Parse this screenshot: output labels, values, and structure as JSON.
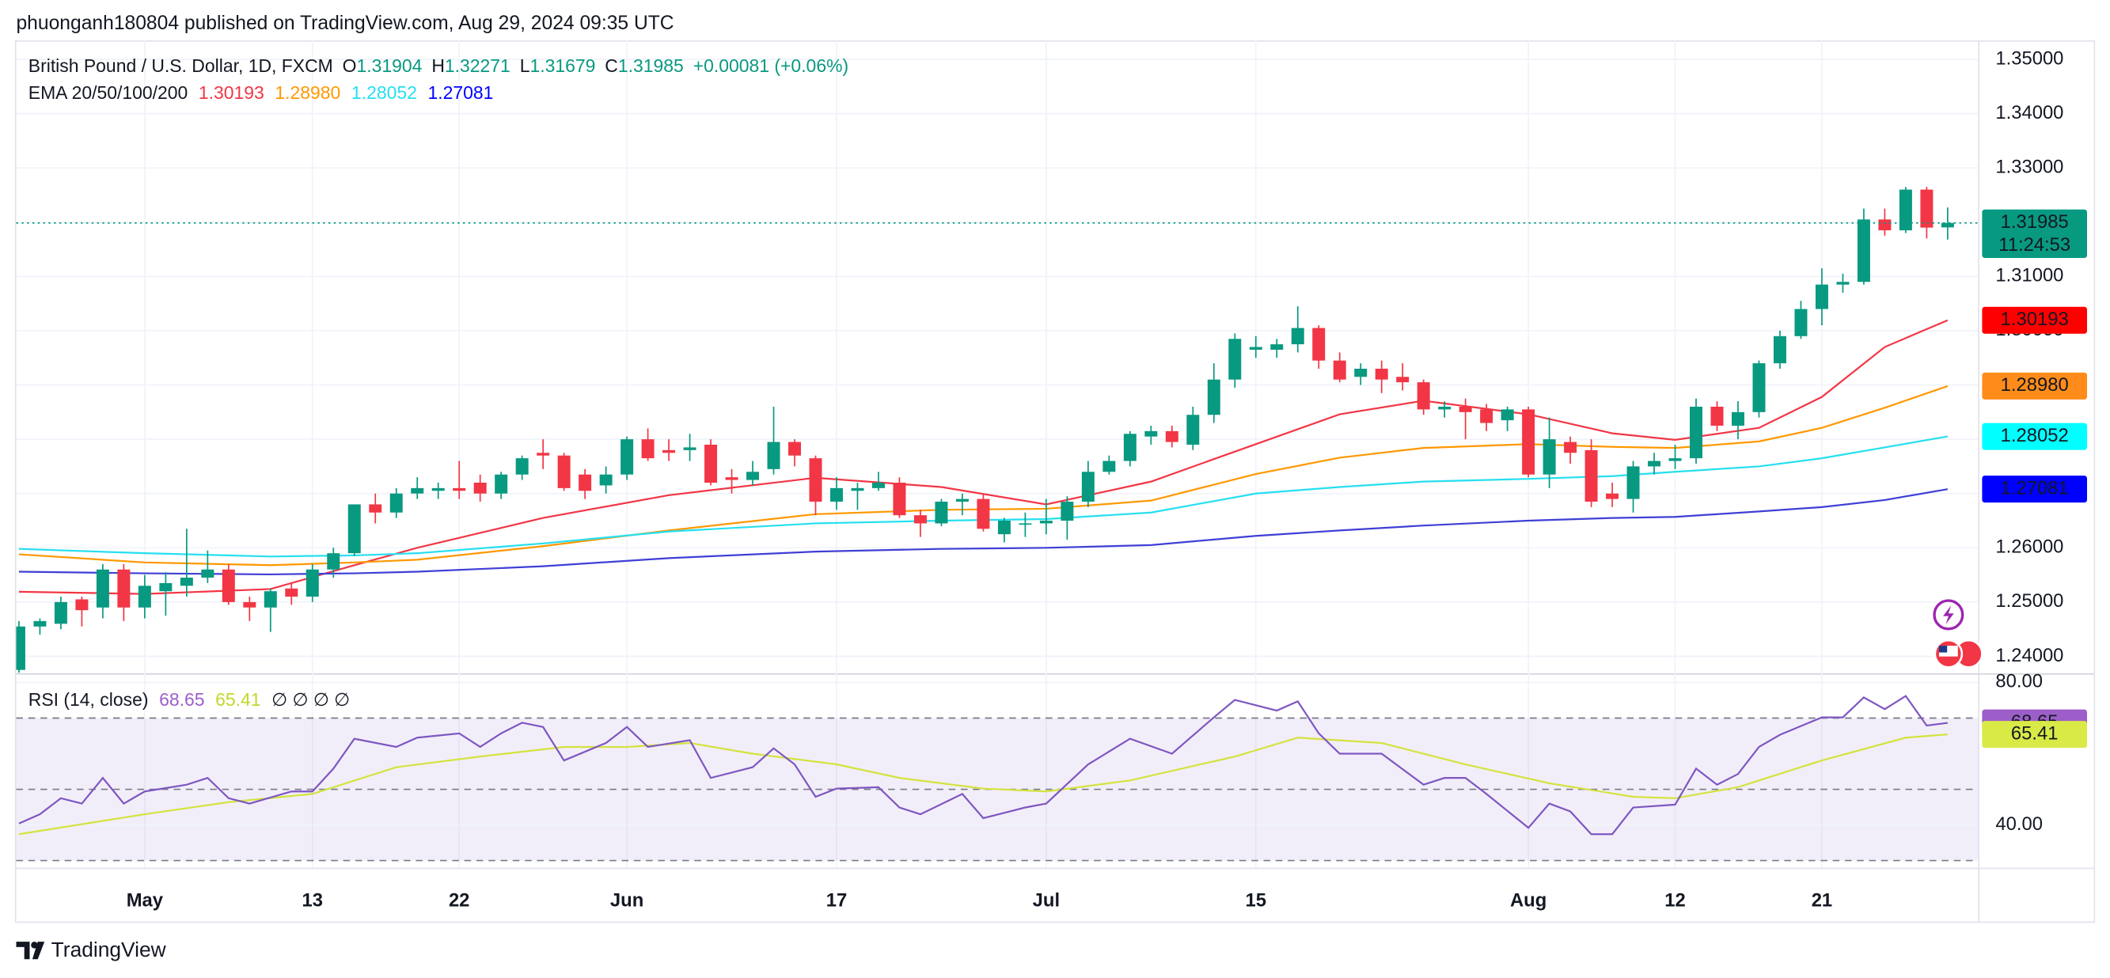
{
  "header": "phuonganh180804 published on TradingView.com, Aug 29, 2024 09:35 UTC",
  "footer": "TradingView",
  "chart_data": [
    {
      "type": "candlestick",
      "title": "British Pound / U.S. Dollar, 1D, FXCM",
      "ohlc_labels": [
        "O",
        "H",
        "L",
        "C"
      ],
      "change": "+0.00081 (+0.06%)",
      "countdown": "11:24:53",
      "up_color": "#089981",
      "down_color": "#f23645",
      "open": [
        1.2375,
        1.2455,
        1.246,
        1.2505,
        1.249,
        1.256,
        1.249,
        1.252,
        1.253,
        1.2545,
        1.256,
        1.25,
        1.249,
        1.2525,
        1.251,
        1.256,
        1.259,
        1.268,
        1.2665,
        1.27,
        1.2705,
        1.271,
        1.272,
        1.27,
        1.2735,
        1.2775,
        1.277,
        1.2735,
        1.2715,
        1.2735,
        1.28,
        1.278,
        1.278,
        1.279,
        1.273,
        1.2725,
        1.2745,
        1.2795,
        1.2765,
        1.2685,
        1.2705,
        1.271,
        1.272,
        1.266,
        1.2645,
        1.2685,
        1.269,
        1.2625,
        1.2645,
        1.2645,
        1.265,
        1.2685,
        1.274,
        1.276,
        1.2805,
        1.2815,
        1.279,
        1.2845,
        1.291,
        1.2965,
        1.2965,
        1.2975,
        1.3005,
        1.2945,
        1.2915,
        1.293,
        1.2915,
        1.2905,
        1.2855,
        1.286,
        1.2855,
        1.2835,
        1.2855,
        1.2735,
        1.2795,
        1.278,
        1.27,
        1.269,
        1.275,
        1.276,
        1.2765,
        1.286,
        1.2825,
        1.285,
        1.294,
        1.299,
        1.304,
        1.3085,
        1.309,
        1.3205,
        1.3185,
        1.326,
        1.31904
      ],
      "high": [
        1.2465,
        1.247,
        1.251,
        1.251,
        1.257,
        1.257,
        1.255,
        1.2555,
        1.2635,
        1.2595,
        1.257,
        1.251,
        1.2525,
        1.2535,
        1.257,
        1.26,
        1.268,
        1.27,
        1.271,
        1.273,
        1.272,
        1.276,
        1.2735,
        1.274,
        1.277,
        1.28,
        1.2775,
        1.2745,
        1.275,
        1.2805,
        1.282,
        1.28,
        1.281,
        1.28,
        1.2745,
        1.276,
        1.286,
        1.28,
        1.277,
        1.273,
        1.272,
        1.274,
        1.273,
        1.267,
        1.269,
        1.27,
        1.27,
        1.2655,
        1.2665,
        1.269,
        1.2695,
        1.276,
        1.277,
        1.2815,
        1.2825,
        1.2825,
        1.286,
        1.294,
        1.2995,
        1.299,
        1.2985,
        1.3045,
        1.301,
        1.296,
        1.294,
        1.2945,
        1.294,
        1.291,
        1.287,
        1.2875,
        1.2865,
        1.286,
        1.286,
        1.284,
        1.2805,
        1.28,
        1.272,
        1.276,
        1.2775,
        1.279,
        1.2875,
        1.287,
        1.287,
        1.2945,
        1.3,
        1.3055,
        1.3115,
        1.3105,
        1.3225,
        1.3225,
        1.3265,
        1.3265,
        1.32271
      ],
      "low": [
        1.2365,
        1.244,
        1.245,
        1.2455,
        1.247,
        1.2465,
        1.247,
        1.2475,
        1.251,
        1.2535,
        1.2495,
        1.2465,
        1.2445,
        1.2495,
        1.25,
        1.2545,
        1.2585,
        1.2645,
        1.2655,
        1.269,
        1.269,
        1.269,
        1.2685,
        1.269,
        1.2725,
        1.2745,
        1.2705,
        1.269,
        1.27,
        1.2725,
        1.276,
        1.276,
        1.276,
        1.2715,
        1.27,
        1.2715,
        1.2735,
        1.275,
        1.266,
        1.267,
        1.267,
        1.2705,
        1.2655,
        1.262,
        1.264,
        1.266,
        1.263,
        1.261,
        1.262,
        1.2625,
        1.2615,
        1.2675,
        1.2735,
        1.275,
        1.279,
        1.2785,
        1.278,
        1.283,
        1.2895,
        1.295,
        1.295,
        1.296,
        1.293,
        1.2905,
        1.29,
        1.2885,
        1.289,
        1.2845,
        1.284,
        1.28,
        1.2815,
        1.2815,
        1.273,
        1.271,
        1.2755,
        1.2675,
        1.2675,
        1.2665,
        1.2735,
        1.2745,
        1.2755,
        1.2815,
        1.28,
        1.284,
        1.293,
        1.2985,
        1.301,
        1.307,
        1.3085,
        1.3175,
        1.318,
        1.317,
        1.31679
      ],
      "close": [
        1.2455,
        1.2465,
        1.25,
        1.2485,
        1.256,
        1.249,
        1.253,
        1.2535,
        1.2545,
        1.256,
        1.25,
        1.249,
        1.252,
        1.251,
        1.256,
        1.259,
        1.268,
        1.2665,
        1.27,
        1.271,
        1.271,
        1.2705,
        1.27,
        1.2735,
        1.2765,
        1.277,
        1.271,
        1.2705,
        1.2735,
        1.28,
        1.2765,
        1.2775,
        1.2785,
        1.272,
        1.2725,
        1.274,
        1.2795,
        1.277,
        1.2685,
        1.271,
        1.271,
        1.272,
        1.266,
        1.2645,
        1.2685,
        1.269,
        1.2635,
        1.265,
        1.2645,
        1.265,
        1.2685,
        1.274,
        1.276,
        1.281,
        1.2815,
        1.2795,
        1.2845,
        1.291,
        1.2985,
        1.297,
        1.2975,
        1.3005,
        1.2945,
        1.291,
        1.293,
        1.291,
        1.2905,
        1.2855,
        1.286,
        1.285,
        1.283,
        1.2855,
        1.2735,
        1.28,
        1.2775,
        1.2685,
        1.269,
        1.275,
        1.276,
        1.2765,
        1.286,
        1.2825,
        1.285,
        1.294,
        1.299,
        1.304,
        1.3085,
        1.309,
        1.3205,
        1.3185,
        1.326,
        1.319,
        1.31985
      ],
      "xlim": [
        -0.13,
        93.45
      ],
      "xticks": [
        {
          "value": 6,
          "label": "May"
        },
        {
          "value": 14,
          "label": "13"
        },
        {
          "value": 21,
          "label": "22"
        },
        {
          "value": 29,
          "label": "Jun"
        },
        {
          "value": 39,
          "label": "17"
        },
        {
          "value": 49,
          "label": "Jul"
        },
        {
          "value": 59,
          "label": "15"
        },
        {
          "value": 72,
          "label": "Aug"
        },
        {
          "value": 79,
          "label": "12"
        },
        {
          "value": 86,
          "label": "21"
        }
      ],
      "ylim": [
        1.237,
        1.3535
      ],
      "yticks": [
        {
          "value": 1.24,
          "label": "1.24000"
        },
        {
          "value": 1.25,
          "label": "1.25000"
        },
        {
          "value": 1.26,
          "label": "1.26000"
        },
        {
          "value": 1.27,
          "label": "1.27000"
        },
        {
          "value": 1.28,
          "label": "1.28000"
        },
        {
          "value": 1.29,
          "label": "1.29000"
        },
        {
          "value": 1.3,
          "label": "1.30000"
        },
        {
          "value": 1.31,
          "label": "1.31000"
        },
        {
          "value": 1.32,
          "label": "1.32000"
        },
        {
          "value": 1.33,
          "label": "1.33000"
        },
        {
          "value": 1.34,
          "label": "1.34000"
        },
        {
          "value": 1.35,
          "label": "1.35000"
        }
      ],
      "grid": true,
      "overlay_title": "EMA 20/50/100/200",
      "overlays": [
        {
          "color": "#f23645",
          "label_color": "#ff0000",
          "x": [
            0,
            6,
            12,
            16,
            19,
            25,
            31,
            38,
            44,
            49,
            54,
            59,
            63,
            67,
            72,
            76,
            79,
            83,
            86,
            89,
            92
          ],
          "values": [
            1.2519,
            1.2515,
            1.2524,
            1.2568,
            1.26,
            1.2655,
            1.2697,
            1.2729,
            1.2712,
            1.268,
            1.2722,
            1.2791,
            1.2846,
            1.2871,
            1.2846,
            1.2811,
            1.2799,
            1.2821,
            1.2878,
            1.297,
            1.30193
          ],
          "value_labels": [
            null,
            null,
            null,
            null,
            null,
            null,
            null,
            null,
            null,
            null,
            null,
            null,
            null,
            null,
            null,
            null,
            null,
            null,
            null,
            null,
            "1.30193"
          ]
        },
        {
          "color": "#ff9800",
          "label_color": "#ff8c1a",
          "x": [
            0,
            6,
            12,
            16,
            19,
            25,
            31,
            38,
            44,
            49,
            54,
            59,
            63,
            67,
            72,
            76,
            79,
            83,
            86,
            89,
            92
          ],
          "values": [
            1.2588,
            1.2573,
            1.2568,
            1.2573,
            1.2578,
            1.2603,
            1.2632,
            1.2662,
            1.267,
            1.2672,
            1.2687,
            1.2736,
            1.2766,
            1.2784,
            1.2791,
            1.2786,
            1.2784,
            1.2796,
            1.2821,
            1.2858,
            1.2898
          ],
          "value_labels": [
            null,
            null,
            null,
            null,
            null,
            null,
            null,
            null,
            null,
            null,
            null,
            null,
            null,
            null,
            null,
            null,
            null,
            null,
            null,
            null,
            "1.28980"
          ]
        },
        {
          "color": "#26dff0",
          "label_color": "#00ffff",
          "x": [
            0,
            6,
            12,
            16,
            19,
            25,
            31,
            38,
            44,
            49,
            54,
            59,
            63,
            67,
            72,
            76,
            79,
            83,
            86,
            89,
            92
          ],
          "values": [
            1.2598,
            1.259,
            1.2584,
            1.2586,
            1.259,
            1.2608,
            1.263,
            1.2645,
            1.265,
            1.2653,
            1.2665,
            1.27,
            1.2712,
            1.2722,
            1.2727,
            1.2732,
            1.274,
            1.275,
            1.2765,
            1.2785,
            1.28052
          ],
          "value_labels": [
            null,
            null,
            null,
            null,
            null,
            null,
            null,
            null,
            null,
            null,
            null,
            null,
            null,
            null,
            null,
            null,
            null,
            null,
            null,
            null,
            "1.28052"
          ]
        },
        {
          "color": "#3f3fd6",
          "label_color": "#0000ff",
          "x": [
            0,
            6,
            12,
            16,
            19,
            25,
            31,
            38,
            44,
            49,
            54,
            59,
            63,
            67,
            72,
            76,
            79,
            83,
            86,
            89,
            92
          ],
          "values": [
            1.2556,
            1.2553,
            1.2551,
            1.2553,
            1.2556,
            1.2566,
            1.2581,
            1.2593,
            1.2598,
            1.26,
            1.2605,
            1.2622,
            1.2632,
            1.2641,
            1.265,
            1.2655,
            1.2657,
            1.2667,
            1.2675,
            1.2688,
            1.27081
          ],
          "value_labels": [
            null,
            null,
            null,
            null,
            null,
            null,
            null,
            null,
            null,
            null,
            null,
            null,
            null,
            null,
            null,
            null,
            null,
            null,
            null,
            null,
            "1.27081"
          ]
        }
      ]
    },
    {
      "type": "line",
      "title": "RSI (14, close)",
      "extra": "∅ ∅ ∅ ∅",
      "ylim": [
        28,
        82
      ],
      "yticks": [
        {
          "value": 40,
          "label": "40.00"
        },
        {
          "value": 80,
          "label": "80.00"
        }
      ],
      "levels": [
        70,
        50,
        30
      ],
      "series": [
        {
          "color": "#7e57c2",
          "label_color": "#9c5fc9",
          "x": [
            0,
            1,
            2,
            3,
            4,
            5,
            6,
            8,
            9,
            10,
            11,
            13,
            14,
            15,
            16,
            18,
            19,
            21,
            22,
            23,
            24,
            25,
            26,
            28,
            29,
            30,
            32,
            33,
            35,
            36,
            37,
            38,
            39,
            41,
            42,
            43,
            45,
            46,
            48,
            49,
            51,
            53,
            55,
            57,
            58,
            60,
            61,
            62,
            63,
            65,
            67,
            68,
            69,
            70,
            72,
            73,
            74,
            75,
            76,
            77,
            79,
            80,
            81,
            82,
            83,
            84,
            86,
            87,
            88,
            89,
            90,
            91,
            92
          ],
          "values": [
            40.4,
            43.0,
            47.5,
            46.0,
            53.2,
            46.0,
            49.4,
            51.3,
            53.2,
            47.5,
            46.0,
            49.4,
            49.4,
            55.8,
            64.2,
            61.9,
            64.5,
            65.7,
            61.9,
            65.7,
            68.7,
            67.5,
            58.1,
            63.0,
            67.5,
            61.9,
            63.8,
            53.2,
            56.2,
            61.5,
            57.0,
            47.9,
            50.2,
            50.6,
            44.9,
            43.0,
            48.7,
            41.9,
            44.9,
            46.0,
            57.0,
            64.2,
            60.0,
            70.2,
            75.1,
            72.1,
            74.7,
            65.7,
            60.0,
            60.0,
            51.3,
            53.2,
            53.2,
            48.7,
            39.2,
            46.0,
            43.8,
            37.4,
            37.4,
            44.9,
            45.7,
            55.8,
            51.3,
            54.3,
            61.9,
            65.3,
            70.2,
            70.2,
            75.8,
            72.5,
            76.2,
            67.9,
            68.65
          ]
        },
        {
          "color": "#d4e33f",
          "label_color": "#d9ea46",
          "x": [
            0,
            6,
            10,
            14,
            18,
            22,
            26,
            29,
            32,
            35,
            39,
            42,
            46,
            49,
            53,
            58,
            61,
            65,
            69,
            73,
            77,
            79,
            82,
            86,
            90,
            92
          ],
          "values": [
            37.4,
            43.0,
            46.4,
            48.7,
            56.2,
            59.2,
            61.9,
            61.9,
            63.0,
            60.0,
            57.0,
            53.2,
            50.2,
            49.4,
            52.5,
            59.2,
            64.5,
            63.0,
            57.0,
            51.7,
            47.9,
            47.5,
            50.6,
            58.1,
            64.5,
            65.41
          ]
        }
      ]
    }
  ]
}
